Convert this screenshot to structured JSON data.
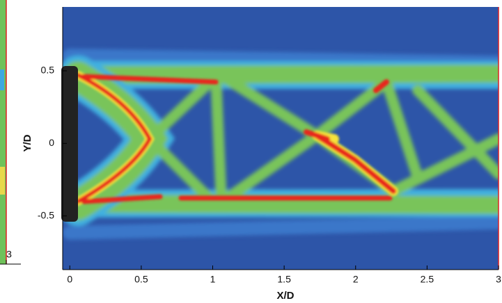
{
  "chart_data": [
    {
      "type": "contour",
      "xlabel": "X/D",
      "ylabel": "Y/D",
      "xlim": [
        -0.05,
        3
      ],
      "xticks": [
        0,
        0.5,
        1,
        1.5,
        2,
        2.5,
        3
      ],
      "ylim": [
        -0.87,
        0.94
      ],
      "yticks": [
        0.5,
        0,
        -0.5
      ]
    },
    {
      "type": "contour",
      "xlim": [
        2.95,
        3
      ],
      "xticks": [
        3
      ]
    }
  ]
}
